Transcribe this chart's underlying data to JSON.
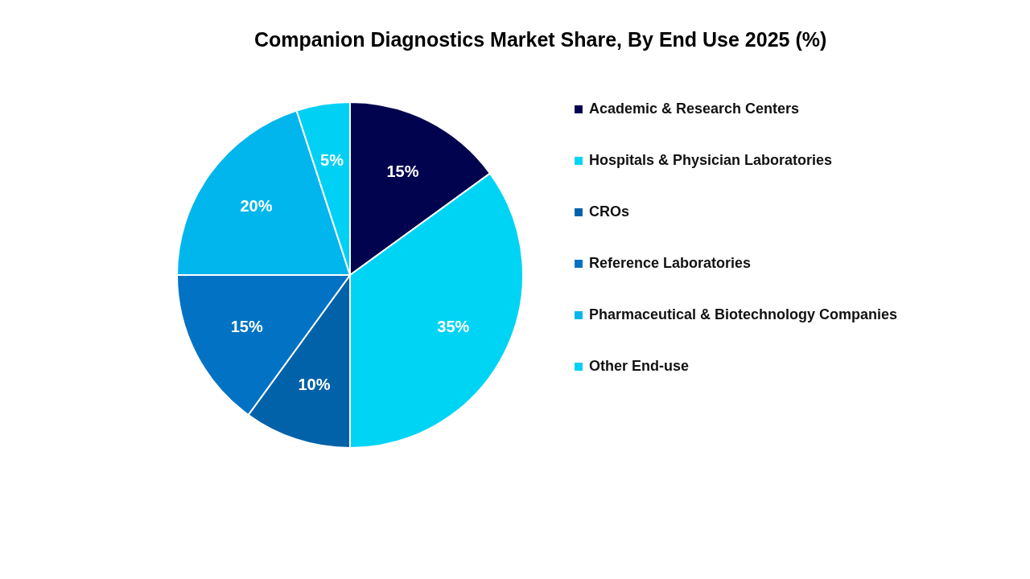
{
  "chart_data": {
    "type": "pie",
    "title": "Companion Diagnostics Market Share, By End Use 2025 (%)",
    "categories": [
      "Academic & Research Centers",
      "Hospitals & Physician Laboratories",
      "CROs",
      "Reference Laboratories",
      "Pharmaceutical & Biotechnology Companies",
      "Other End-use"
    ],
    "values": [
      15,
      35,
      10,
      15,
      20,
      5
    ],
    "value_labels": [
      "15%",
      "35%",
      "10%",
      "15%",
      "20%",
      "5%"
    ],
    "colors": [
      "#02034f",
      "#00d4f5",
      "#0262a9",
      "#0272c4",
      "#00b6ec",
      "#00d0f3"
    ],
    "legend": "right"
  }
}
